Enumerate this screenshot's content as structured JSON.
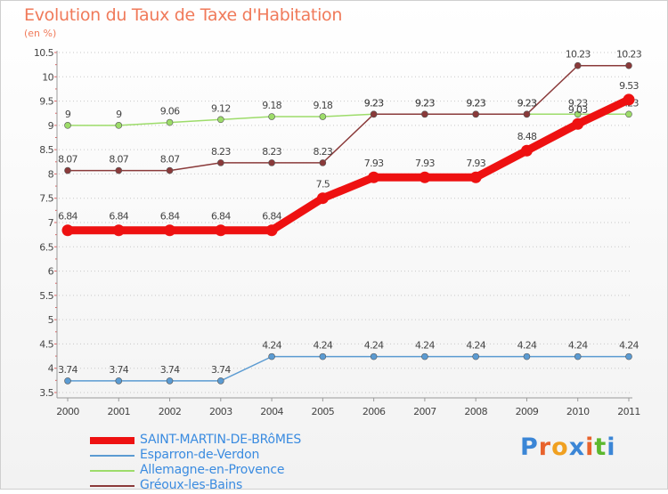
{
  "header": {
    "title": "Evolution du Taux de Taxe d'Habitation",
    "unit": "(en %)"
  },
  "logo": {
    "text": "Proxiti",
    "colors": [
      "#3b86d6",
      "#e8622c",
      "#f0a020",
      "#3b86d6",
      "#e8622c",
      "#5cb82e",
      "#3b86d6"
    ]
  },
  "chart_data": {
    "type": "line",
    "x": [
      "2000",
      "2001",
      "2002",
      "2003",
      "2004",
      "2005",
      "2006",
      "2007",
      "2008",
      "2009",
      "2010",
      "2011"
    ],
    "ylim": [
      3.5,
      10.5
    ],
    "yticks": [
      "3.5",
      "4",
      "4.5",
      "5",
      "5.5",
      "6",
      "6.5",
      "7",
      "7.5",
      "8",
      "8.5",
      "9",
      "9.5",
      "10",
      "10.5"
    ],
    "grid": "horizontal dotted",
    "legend_position": "bottom-left",
    "series": [
      {
        "name": "SAINT-MARTIN-DE-BRôMES",
        "color": "#ee1111",
        "values": [
          6.84,
          6.84,
          6.84,
          6.84,
          6.84,
          7.5,
          7.93,
          7.93,
          7.93,
          8.48,
          9.03,
          9.53
        ],
        "labels": [
          "6.84",
          "6.84",
          "6.84",
          "6.84",
          "6.84",
          "7.5",
          "7.93",
          "7.93",
          "7.93",
          "8.48",
          "9.03",
          "9.53"
        ],
        "emphasis": true
      },
      {
        "name": "Esparron-de-Verdon",
        "color": "#5b9bd2",
        "values": [
          3.74,
          3.74,
          3.74,
          3.74,
          4.24,
          4.24,
          4.24,
          4.24,
          4.24,
          4.24,
          4.24,
          4.24
        ],
        "labels": [
          "3.74",
          "3.74",
          "3.74",
          "3.74",
          "4.24",
          "4.24",
          "4.24",
          "4.24",
          "4.24",
          "4.24",
          "4.24",
          "4.24"
        ]
      },
      {
        "name": "Allemagne-en-Provence",
        "color": "#9ddc6a",
        "values": [
          9,
          9,
          9.06,
          9.12,
          9.18,
          9.18,
          9.23,
          9.23,
          9.23,
          9.23,
          9.23,
          9.23
        ],
        "labels": [
          "9",
          "9",
          "9.06",
          "9.12",
          "9.18",
          "9.18",
          "9.23",
          "9.23",
          "9.23",
          "9.23",
          "9.23",
          "9.23"
        ]
      },
      {
        "name": "Gréoux-les-Bains",
        "color": "#8a3a3a",
        "values": [
          8.07,
          8.07,
          8.07,
          8.23,
          8.23,
          8.23,
          9.23,
          9.23,
          9.23,
          9.23,
          10.23,
          10.23
        ],
        "labels": [
          "8.07",
          "8.07",
          "8.07",
          "8.23",
          "8.23",
          "8.23",
          "9.23",
          "9.23",
          "9.23",
          "9.23",
          "10.23",
          "10.23"
        ]
      }
    ]
  }
}
